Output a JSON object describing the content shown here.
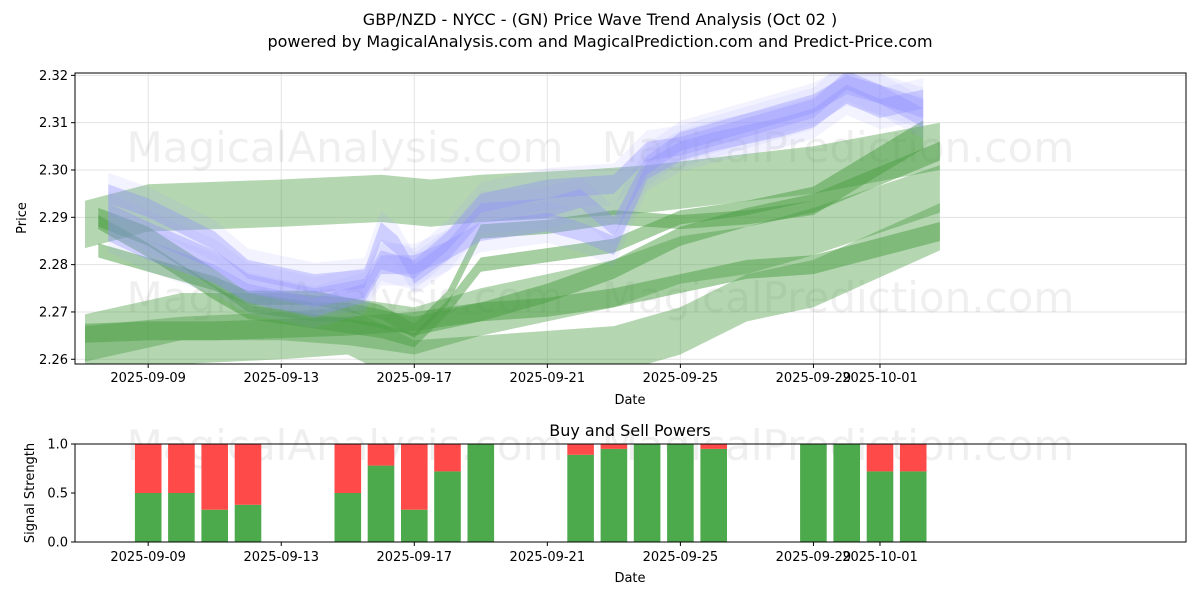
{
  "title_line1": "GBP/NZD - NYCC -  (GN) Price Wave Trend Analysis (Oct 02 )",
  "title_line2": "powered by MagicalAnalysis.com and MagicalPrediction.com and Predict-Price.com",
  "watermarks": [
    "MagicalAnalysis.com",
    "MagicalPrediction.com"
  ],
  "chart_data": [
    {
      "type": "line",
      "title": "",
      "xlabel": "Date",
      "ylabel": "Price",
      "ylim": [
        2.259,
        2.3205
      ],
      "xlim": [
        -2.2,
        31.2
      ],
      "x_ticks": [
        {
          "day": 0,
          "label": "2025-09-09"
        },
        {
          "day": 4,
          "label": "2025-09-13"
        },
        {
          "day": 8,
          "label": "2025-09-17"
        },
        {
          "day": 12,
          "label": "2025-09-21"
        },
        {
          "day": 16,
          "label": "2025-09-25"
        },
        {
          "day": 20,
          "label": "2025-09-29"
        },
        {
          "day": 22,
          "label": "2025-10-01"
        }
      ],
      "y_ticks": [
        2.26,
        2.27,
        2.28,
        2.29,
        2.3,
        2.31,
        2.32
      ],
      "blue_bands": [
        {
          "x": [
            -1.2,
            0,
            2,
            3,
            5,
            6.5,
            7,
            7.5,
            8,
            9,
            10,
            12,
            13,
            14,
            15,
            16,
            17,
            19,
            20,
            21,
            22,
            23.3
          ],
          "y": [
            2.295,
            2.292,
            2.285,
            2.279,
            2.276,
            2.277,
            2.287,
            2.284,
            2.278,
            2.283,
            2.291,
            2.292,
            2.294,
            2.288,
            2.301,
            2.306,
            2.308,
            2.312,
            2.314,
            2.318,
            2.316,
            2.313
          ],
          "w": 0.004
        },
        {
          "x": [
            -1.2,
            0,
            2,
            3,
            5,
            6.5,
            7,
            8,
            9,
            10,
            12,
            14,
            15,
            16,
            17,
            19,
            20,
            21,
            22,
            23.3
          ],
          "y": [
            2.291,
            2.287,
            2.281,
            2.276,
            2.273,
            2.275,
            2.281,
            2.279,
            2.285,
            2.293,
            2.296,
            2.297,
            2.304,
            2.305,
            2.307,
            2.311,
            2.313,
            2.319,
            2.316,
            2.311
          ],
          "w": 0.004
        },
        {
          "x": [
            -1.2,
            0,
            2,
            3,
            5,
            6.5,
            7,
            8,
            9,
            10,
            12,
            13,
            14,
            15,
            16,
            17,
            19,
            20,
            21,
            22,
            23.3
          ],
          "y": [
            2.287,
            2.283,
            2.278,
            2.274,
            2.271,
            2.274,
            2.28,
            2.28,
            2.283,
            2.287,
            2.289,
            2.287,
            2.284,
            2.3,
            2.304,
            2.306,
            2.309,
            2.311,
            2.316,
            2.313,
            2.315
          ],
          "w": 0.004
        }
      ],
      "green_bands": [
        {
          "x": [
            -1.9,
            0,
            4,
            7,
            8.5,
            10,
            13,
            15,
            20,
            23.8
          ],
          "y": [
            2.2885,
            2.292,
            2.293,
            2.294,
            2.293,
            2.294,
            2.295,
            2.296,
            2.3,
            2.305
          ],
          "w": 0.01
        },
        {
          "x": [
            -1.9,
            1,
            4,
            6,
            8,
            10,
            12,
            14,
            16,
            18,
            20,
            23.8
          ],
          "y": [
            2.2645,
            2.269,
            2.269,
            2.268,
            2.266,
            2.27,
            2.273,
            2.276,
            2.281,
            2.283,
            2.287,
            2.296
          ],
          "w": 0.01
        },
        {
          "x": [
            -1.9,
            1,
            4,
            6,
            8,
            10,
            12,
            14,
            16,
            18,
            20,
            23.8
          ],
          "y": [
            2.262,
            2.264,
            2.265,
            2.266,
            2.259,
            2.26,
            2.261,
            2.262,
            2.266,
            2.273,
            2.276,
            2.288
          ],
          "w": 0.01
        },
        {
          "x": [
            -1.9,
            0,
            2,
            4,
            6,
            8,
            10,
            12,
            14,
            16,
            18,
            20,
            23.8
          ],
          "y": [
            2.2655,
            2.266,
            2.266,
            2.2665,
            2.267,
            2.268,
            2.27,
            2.271,
            2.273,
            2.276,
            2.279,
            2.28,
            2.287
          ],
          "w": 0.004
        },
        {
          "x": [
            -1.5,
            0,
            2,
            3,
            5,
            6,
            8,
            10,
            12,
            14,
            16,
            18,
            20,
            23.8
          ],
          "y": [
            2.29,
            2.286,
            2.277,
            2.272,
            2.27,
            2.27,
            2.267,
            2.27,
            2.274,
            2.279,
            2.286,
            2.29,
            2.293,
            2.304
          ],
          "w": 0.004
        },
        {
          "x": [
            -1.5,
            0,
            2,
            3,
            5,
            7,
            8,
            9,
            10,
            12,
            14,
            16,
            18,
            20,
            23.3
          ],
          "y": [
            2.283,
            2.28,
            2.276,
            2.273,
            2.273,
            2.27,
            2.266,
            2.273,
            2.287,
            2.288,
            2.29,
            2.289,
            2.29,
            2.292,
            2.306
          ],
          "w": 0.003
        },
        {
          "x": [
            -1.5,
            0,
            2,
            3,
            5,
            7,
            8,
            9,
            10,
            12,
            14,
            16,
            18,
            20,
            23.3
          ],
          "y": [
            2.289,
            2.283,
            2.274,
            2.27,
            2.268,
            2.266,
            2.264,
            2.271,
            2.28,
            2.282,
            2.284,
            2.29,
            2.292,
            2.295,
            2.309
          ],
          "w": 0.003
        }
      ]
    },
    {
      "type": "bar",
      "title": "Buy and Sell Powers",
      "xlabel": "Date",
      "ylabel": "Signal Strength",
      "ylim": [
        0,
        1.0
      ],
      "y_ticks": [
        0.0,
        0.5,
        1.0
      ],
      "y_tick_labels": [
        "0.0",
        "0.5",
        "1.0"
      ],
      "x_ticks": [
        {
          "day": 0,
          "label": "2025-09-09"
        },
        {
          "day": 4,
          "label": "2025-09-13"
        },
        {
          "day": 8,
          "label": "2025-09-17"
        },
        {
          "day": 12,
          "label": "2025-09-21"
        },
        {
          "day": 16,
          "label": "2025-09-25"
        },
        {
          "day": 20,
          "label": "2025-09-29"
        },
        {
          "day": 22,
          "label": "2025-10-01"
        }
      ],
      "series": [
        {
          "name": "Buy",
          "color": "#4caa4c"
        },
        {
          "name": "Sell",
          "color": "#ff4a4a"
        }
      ],
      "bars": [
        {
          "day": 0,
          "buy": 0.5
        },
        {
          "day": 1,
          "buy": 0.5
        },
        {
          "day": 2,
          "buy": 0.33
        },
        {
          "day": 3,
          "buy": 0.38
        },
        {
          "day": 6,
          "buy": 0.5
        },
        {
          "day": 7,
          "buy": 0.78
        },
        {
          "day": 8,
          "buy": 0.33
        },
        {
          "day": 9,
          "buy": 0.72
        },
        {
          "day": 10,
          "buy": 1.0
        },
        {
          "day": 13,
          "buy": 0.89
        },
        {
          "day": 14,
          "buy": 0.95
        },
        {
          "day": 15,
          "buy": 1.0
        },
        {
          "day": 16,
          "buy": 1.0
        },
        {
          "day": 17,
          "buy": 0.95
        },
        {
          "day": 20,
          "buy": 1.0
        },
        {
          "day": 21,
          "buy": 1.0
        },
        {
          "day": 22,
          "buy": 0.72
        },
        {
          "day": 23,
          "buy": 0.72
        }
      ]
    }
  ]
}
